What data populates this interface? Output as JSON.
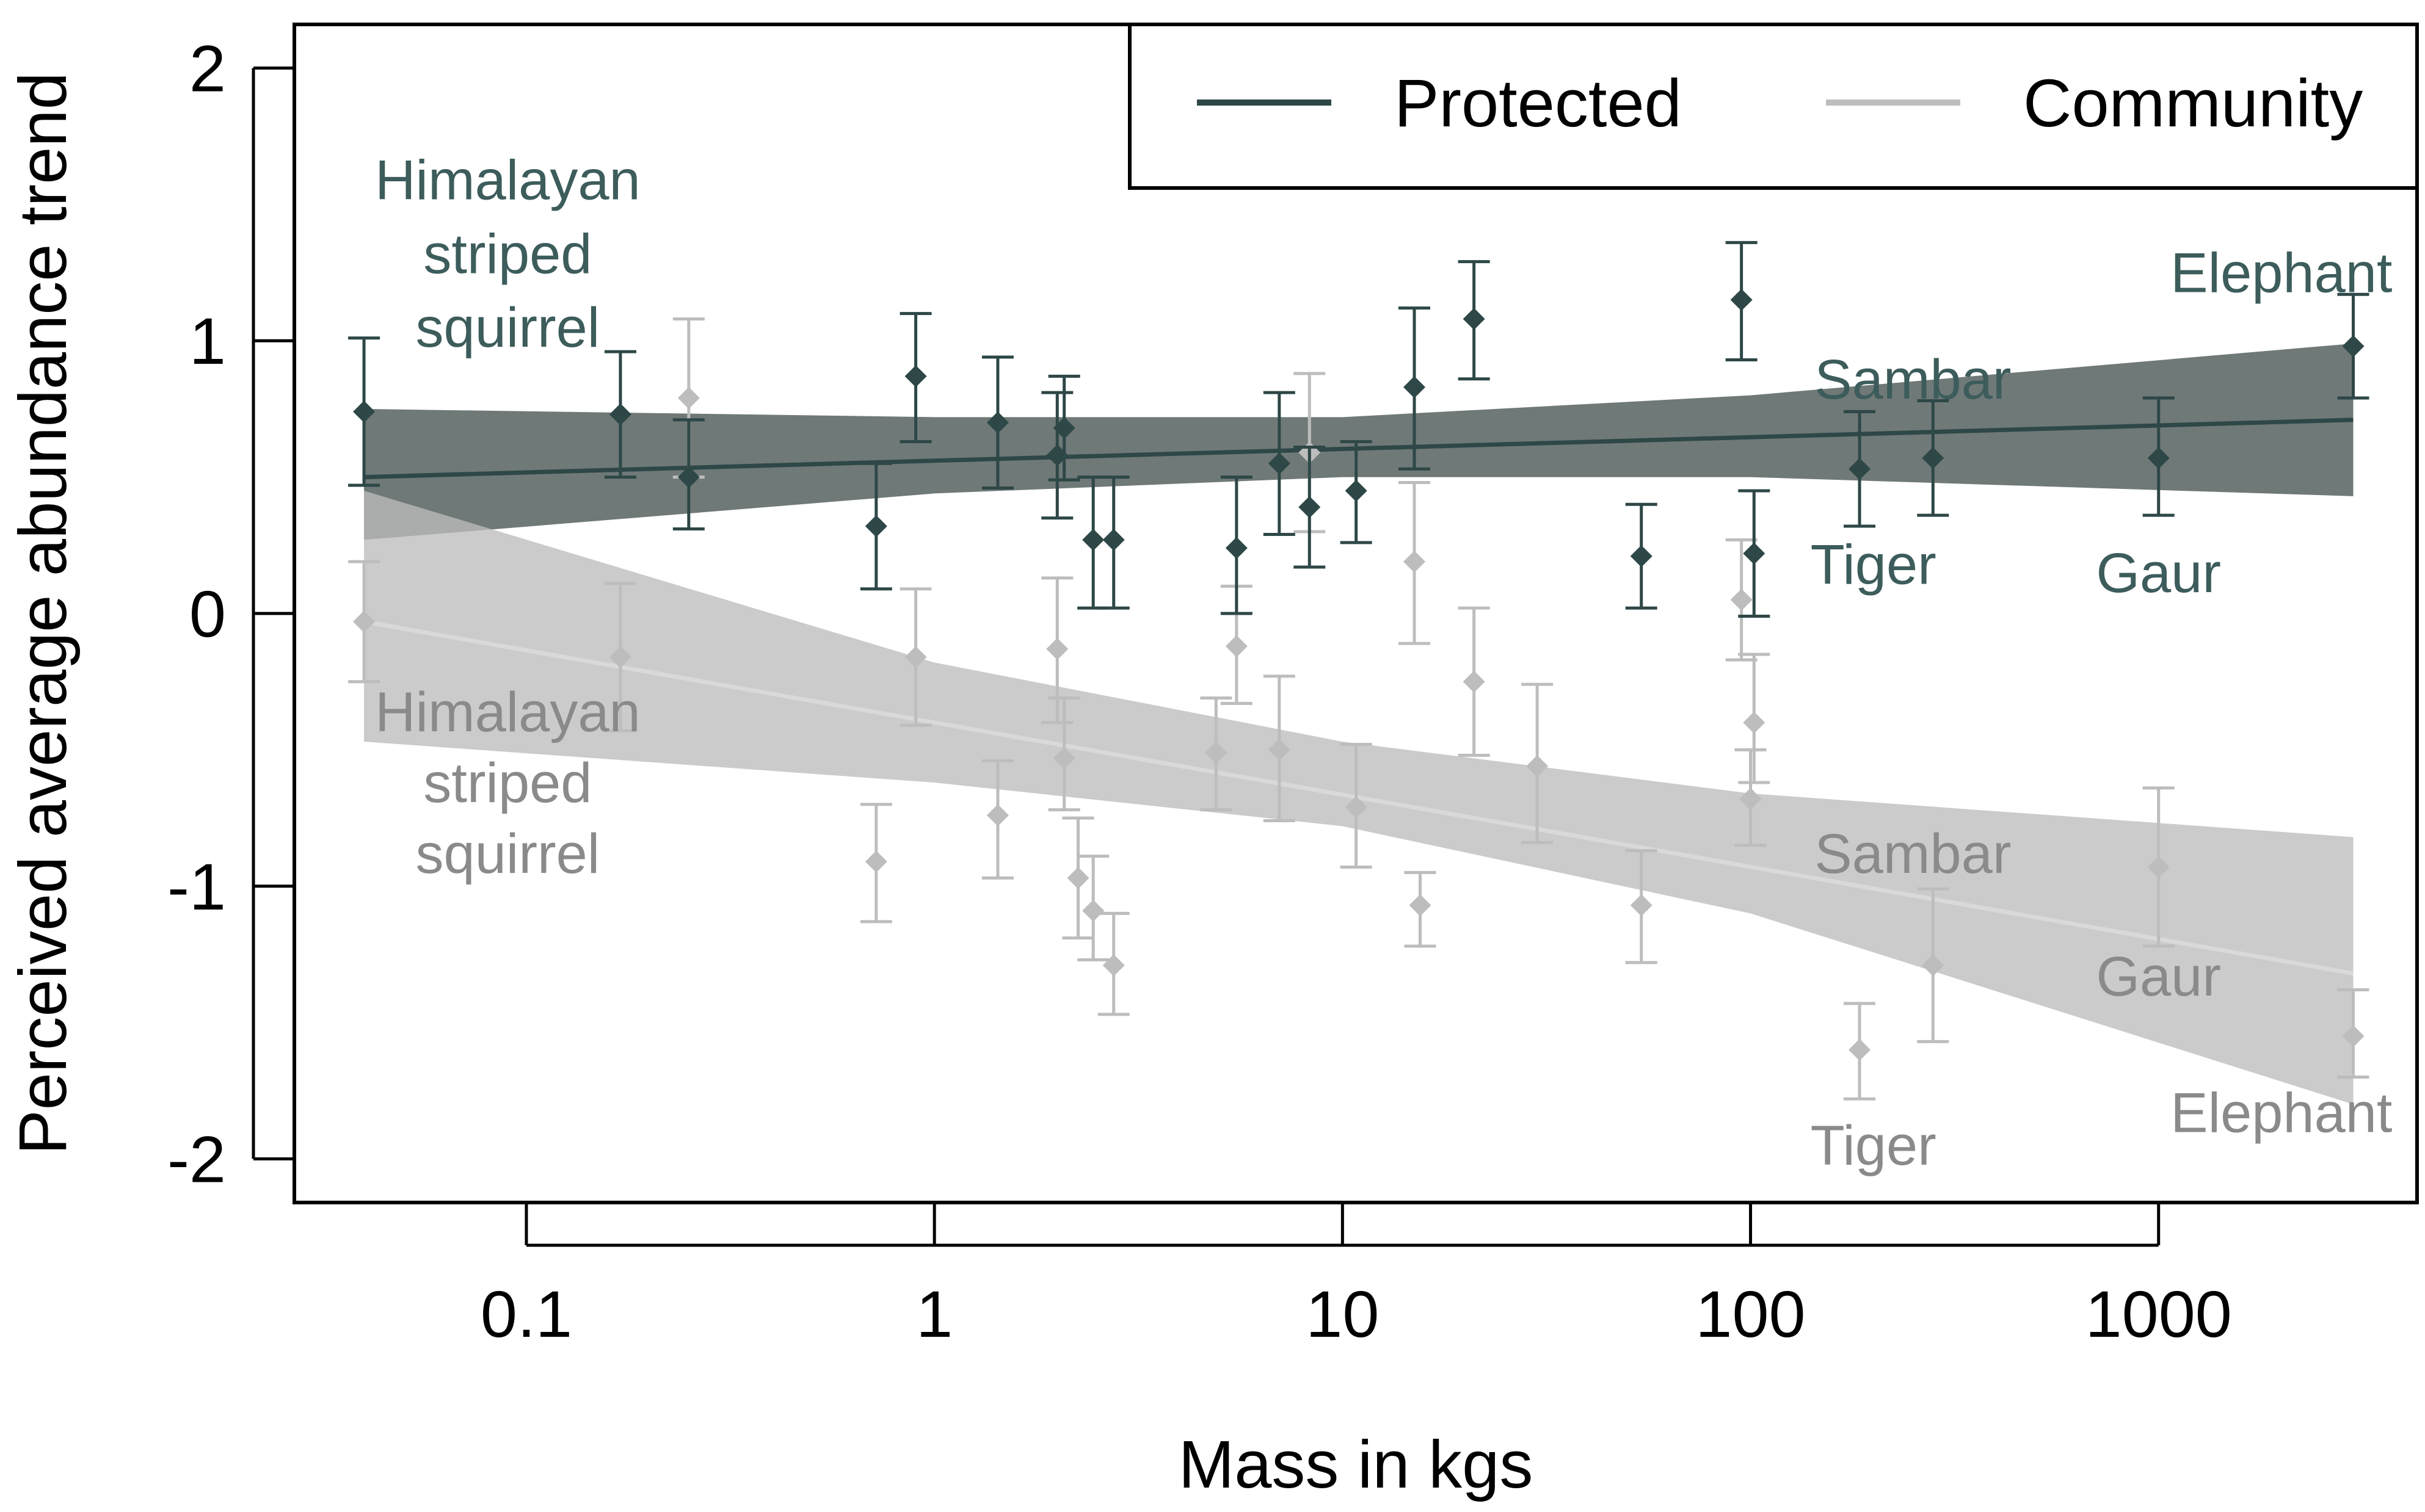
{
  "chart_data": {
    "type": "scatter",
    "title": "",
    "xlabel": "Mass in kgs",
    "ylabel": "Perceived average abundance trend",
    "xscale": "log10",
    "xlim": [
      0.027,
      4300
    ],
    "ylim": [
      -2.16,
      2.16
    ],
    "x_ticks": [
      0.1,
      1,
      10,
      100,
      1000
    ],
    "x_tick_labels": [
      "0.1",
      "1",
      "10",
      "100",
      "1000"
    ],
    "y_ticks": [
      -2,
      -1,
      0,
      1,
      2
    ],
    "y_tick_labels": [
      "-2",
      "-1",
      "0",
      "1",
      "2"
    ],
    "legend": {
      "position": "top-right"
    },
    "series": [
      {
        "name": "Protected",
        "color": "#2e4747",
        "band_color": "#6f7977",
        "fit": {
          "x": [
            0.04,
            3000
          ],
          "y": [
            0.5,
            0.71
          ]
        },
        "band": {
          "x": [
            0.04,
            1,
            10,
            100,
            3000
          ],
          "lower": [
            0.27,
            0.44,
            0.5,
            0.5,
            0.43
          ],
          "upper": [
            0.75,
            0.72,
            0.72,
            0.8,
            0.99
          ]
        },
        "points": [
          {
            "x": 0.04,
            "y": 0.74,
            "lo": 0.47,
            "hi": 1.01
          },
          {
            "x": 0.17,
            "y": 0.73,
            "lo": 0.5,
            "hi": 0.96
          },
          {
            "x": 0.25,
            "y": 0.5,
            "lo": 0.31,
            "hi": 0.71
          },
          {
            "x": 0.72,
            "y": 0.32,
            "lo": 0.09,
            "hi": 0.55
          },
          {
            "x": 0.9,
            "y": 0.87,
            "lo": 0.63,
            "hi": 1.1
          },
          {
            "x": 1.43,
            "y": 0.7,
            "lo": 0.46,
            "hi": 0.94
          },
          {
            "x": 2.0,
            "y": 0.58,
            "lo": 0.35,
            "hi": 0.81
          },
          {
            "x": 2.08,
            "y": 0.68,
            "lo": 0.49,
            "hi": 0.87
          },
          {
            "x": 2.45,
            "y": 0.27,
            "lo": 0.02,
            "hi": 0.5
          },
          {
            "x": 2.75,
            "y": 0.27,
            "lo": 0.02,
            "hi": 0.5
          },
          {
            "x": 5.5,
            "y": 0.24,
            "lo": 0.0,
            "hi": 0.5
          },
          {
            "x": 7.0,
            "y": 0.55,
            "lo": 0.29,
            "hi": 0.81
          },
          {
            "x": 8.3,
            "y": 0.39,
            "lo": 0.17,
            "hi": 0.61
          },
          {
            "x": 10.8,
            "y": 0.45,
            "lo": 0.26,
            "hi": 0.63
          },
          {
            "x": 15.0,
            "y": 0.83,
            "lo": 0.53,
            "hi": 1.12
          },
          {
            "x": 21.0,
            "y": 1.08,
            "lo": 0.86,
            "hi": 1.29
          },
          {
            "x": 54.0,
            "y": 0.21,
            "lo": 0.02,
            "hi": 0.4
          },
          {
            "x": 95.0,
            "y": 1.15,
            "lo": 0.93,
            "hi": 1.36
          },
          {
            "x": 102.0,
            "y": 0.22,
            "lo": -0.01,
            "hi": 0.45
          },
          {
            "x": 185.0,
            "y": 0.53,
            "lo": 0.32,
            "hi": 0.74
          },
          {
            "x": 280.0,
            "y": 0.57,
            "lo": 0.36,
            "hi": 0.78
          },
          {
            "x": 1000.0,
            "y": 0.57,
            "lo": 0.36,
            "hi": 0.79
          },
          {
            "x": 3000.0,
            "y": 0.98,
            "lo": 0.79,
            "hi": 1.17
          }
        ],
        "annotations": [
          {
            "text": "Himalayan",
            "x": 0.09,
            "y": 1.59
          },
          {
            "text": "striped",
            "x": 0.09,
            "y": 1.32
          },
          {
            "text": "squirrel",
            "x": 0.09,
            "y": 1.05
          },
          {
            "text": "Sambar",
            "x": 250,
            "y": 0.86
          },
          {
            "text": "Tiger",
            "x": 200,
            "y": 0.18
          },
          {
            "text": "Gaur",
            "x": 1000,
            "y": 0.15
          },
          {
            "text": "Elephant",
            "x": 2000,
            "y": 1.25
          }
        ]
      },
      {
        "name": "Community",
        "color": "#bdbdbd",
        "band_color": "#bdbdbd",
        "fit": {
          "x": [
            0.04,
            3000
          ],
          "y": [
            -0.03,
            -1.32
          ]
        },
        "band": {
          "x": [
            0.04,
            1,
            10,
            100,
            3000
          ],
          "lower": [
            -0.47,
            -0.62,
            -0.78,
            -1.1,
            -1.8
          ],
          "upper": [
            0.45,
            -0.18,
            -0.47,
            -0.66,
            -0.82
          ]
        },
        "points": [
          {
            "x": 0.04,
            "y": -0.03,
            "lo": -0.25,
            "hi": 0.19
          },
          {
            "x": 0.17,
            "y": -0.16,
            "lo": -0.43,
            "hi": 0.11
          },
          {
            "x": 0.25,
            "y": 0.79,
            "lo": 0.5,
            "hi": 1.08
          },
          {
            "x": 0.72,
            "y": -0.91,
            "lo": -1.13,
            "hi": -0.7
          },
          {
            "x": 0.9,
            "y": -0.16,
            "lo": -0.41,
            "hi": 0.09
          },
          {
            "x": 1.43,
            "y": -0.74,
            "lo": -0.97,
            "hi": -0.54
          },
          {
            "x": 2.0,
            "y": -0.13,
            "lo": -0.4,
            "hi": 0.13
          },
          {
            "x": 2.08,
            "y": -0.53,
            "lo": -0.72,
            "hi": -0.31
          },
          {
            "x": 2.25,
            "y": -0.97,
            "lo": -1.19,
            "hi": -0.75
          },
          {
            "x": 2.45,
            "y": -1.09,
            "lo": -1.27,
            "hi": -0.89
          },
          {
            "x": 2.75,
            "y": -1.29,
            "lo": -1.47,
            "hi": -1.1
          },
          {
            "x": 4.9,
            "y": -0.51,
            "lo": -0.72,
            "hi": -0.31
          },
          {
            "x": 5.5,
            "y": -0.12,
            "lo": -0.33,
            "hi": 0.1
          },
          {
            "x": 7.0,
            "y": -0.5,
            "lo": -0.76,
            "hi": -0.23
          },
          {
            "x": 8.3,
            "y": 0.59,
            "lo": 0.3,
            "hi": 0.88
          },
          {
            "x": 10.8,
            "y": -0.71,
            "lo": -0.93,
            "hi": -0.48
          },
          {
            "x": 15.0,
            "y": 0.19,
            "lo": -0.11,
            "hi": 0.48
          },
          {
            "x": 15.5,
            "y": -1.07,
            "lo": -1.22,
            "hi": -0.95
          },
          {
            "x": 21.0,
            "y": -0.25,
            "lo": -0.52,
            "hi": 0.02
          },
          {
            "x": 30.0,
            "y": -0.56,
            "lo": -0.84,
            "hi": -0.26
          },
          {
            "x": 54.0,
            "y": -1.07,
            "lo": -1.28,
            "hi": -0.87
          },
          {
            "x": 95.0,
            "y": 0.05,
            "lo": -0.17,
            "hi": 0.27
          },
          {
            "x": 100.0,
            "y": -0.68,
            "lo": -0.85,
            "hi": -0.5
          },
          {
            "x": 102.0,
            "y": -0.4,
            "lo": -0.62,
            "hi": -0.15
          },
          {
            "x": 185.0,
            "y": -1.6,
            "lo": -1.78,
            "hi": -1.43
          },
          {
            "x": 280.0,
            "y": -1.29,
            "lo": -1.57,
            "hi": -1.01
          },
          {
            "x": 1000.0,
            "y": -0.93,
            "lo": -1.22,
            "hi": -0.64
          },
          {
            "x": 3000.0,
            "y": -1.55,
            "lo": -1.7,
            "hi": -1.38
          }
        ],
        "annotations": [
          {
            "text": "Himalayan",
            "x": 0.09,
            "y": -0.36
          },
          {
            "text": "striped",
            "x": 0.09,
            "y": -0.62
          },
          {
            "text": "squirrel",
            "x": 0.09,
            "y": -0.88
          },
          {
            "text": "Sambar",
            "x": 250,
            "y": -0.88
          },
          {
            "text": "Gaur",
            "x": 1000,
            "y": -1.33
          },
          {
            "text": "Tiger",
            "x": 200,
            "y": -1.95
          },
          {
            "text": "Elephant",
            "x": 2000,
            "y": -1.83
          }
        ]
      }
    ]
  }
}
